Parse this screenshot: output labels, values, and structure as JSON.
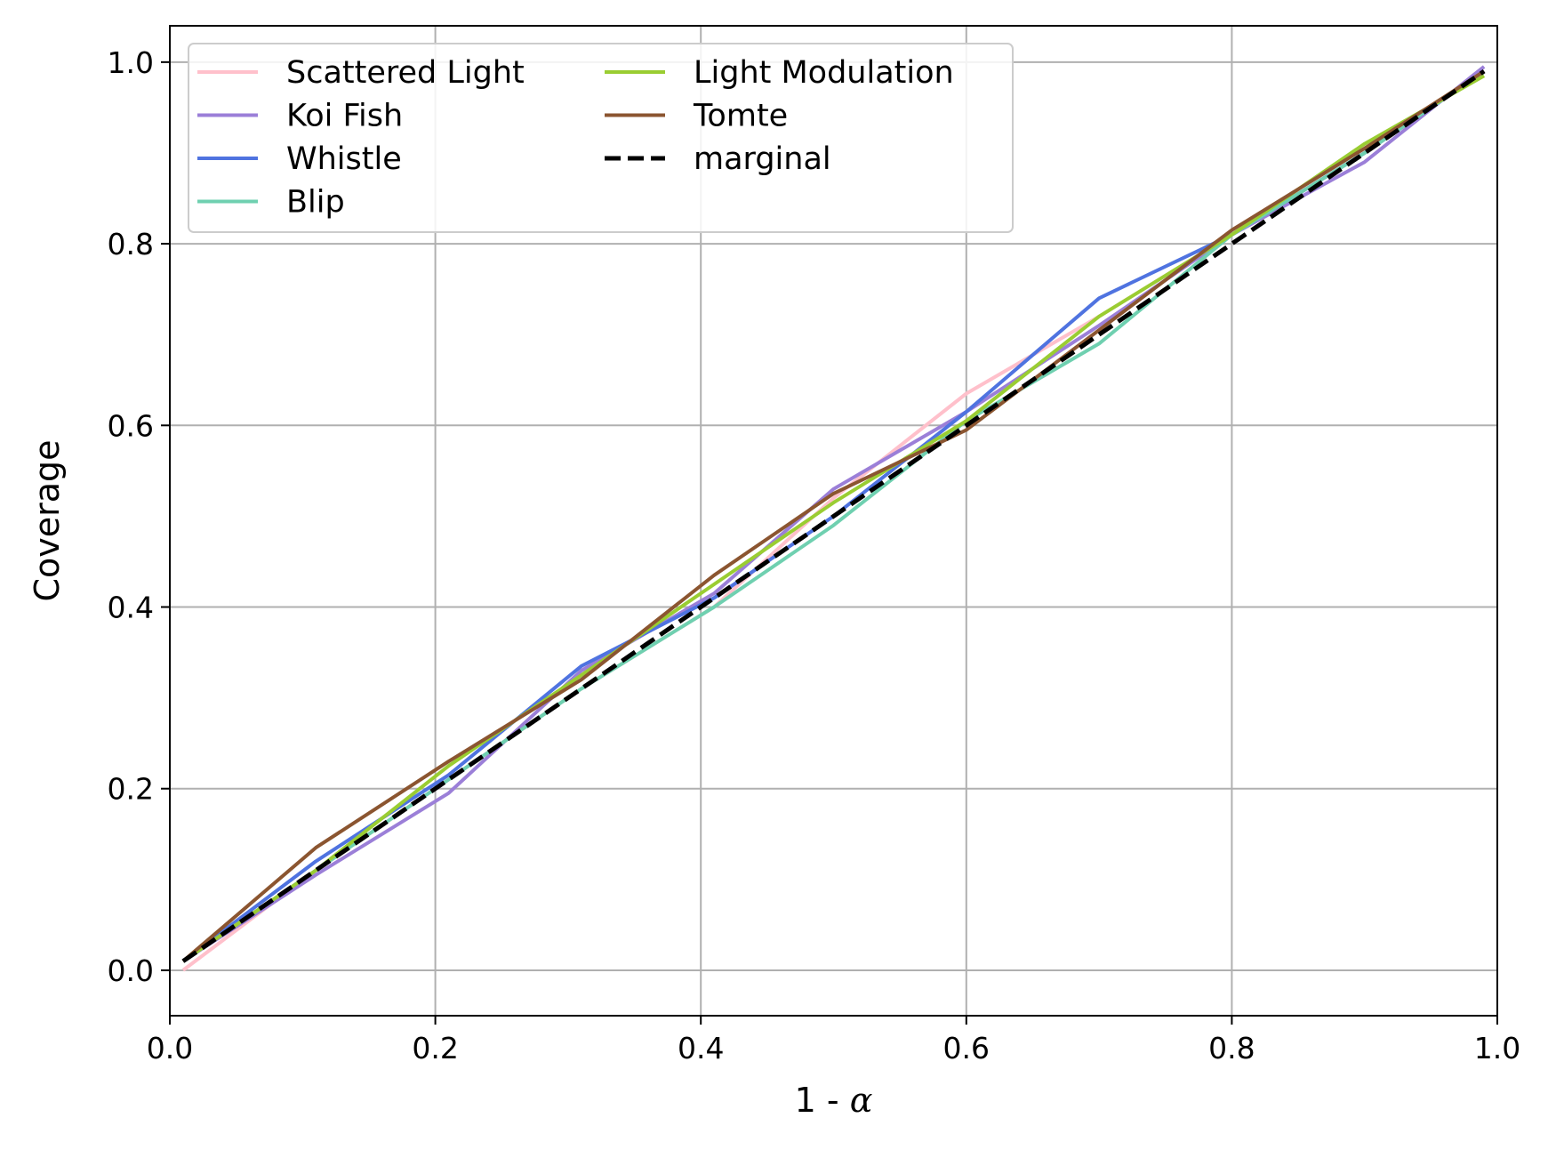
{
  "chart_data": {
    "type": "line",
    "xlabel_prefix": "1 - ",
    "xlabel_symbol": "α",
    "ylabel": "Coverage",
    "xlim": [
      0.0,
      1.0
    ],
    "ylim": [
      -0.05,
      1.04
    ],
    "xticks": [
      "0.0",
      "0.2",
      "0.4",
      "0.6",
      "0.8",
      "1.0"
    ],
    "yticks": [
      "0.0",
      "0.2",
      "0.4",
      "0.6",
      "0.8",
      "1.0"
    ],
    "xtick_values": [
      0.0,
      0.2,
      0.4,
      0.6,
      0.8,
      1.0
    ],
    "ytick_values": [
      0.0,
      0.2,
      0.4,
      0.6,
      0.8,
      1.0
    ],
    "grid": true,
    "legend_position": "top-left",
    "legend_columns": 2,
    "x": [
      0.01,
      0.11,
      0.21,
      0.31,
      0.41,
      0.5,
      0.6,
      0.7,
      0.8,
      0.9,
      0.99
    ],
    "series": [
      {
        "name": "Scattered Light",
        "color": "#ffc0cb",
        "dashed": false,
        "values": [
          0.0,
          0.11,
          0.21,
          0.31,
          0.4,
          0.52,
          0.635,
          0.72,
          0.81,
          0.9,
          0.99
        ]
      },
      {
        "name": "Koi Fish",
        "color": "#9b7fd8",
        "dashed": false,
        "values": [
          0.01,
          0.105,
          0.195,
          0.33,
          0.415,
          0.53,
          0.615,
          0.71,
          0.81,
          0.89,
          0.995
        ]
      },
      {
        "name": "Whistle",
        "color": "#4f73e0",
        "dashed": false,
        "values": [
          0.01,
          0.12,
          0.215,
          0.335,
          0.41,
          0.5,
          0.615,
          0.74,
          0.81,
          0.9,
          0.99
        ]
      },
      {
        "name": "Blip",
        "color": "#6fd0b0",
        "dashed": false,
        "values": [
          0.01,
          0.11,
          0.21,
          0.31,
          0.4,
          0.49,
          0.605,
          0.69,
          0.81,
          0.9,
          0.99
        ]
      },
      {
        "name": "Light Modulation",
        "color": "#9acd32",
        "dashed": false,
        "values": [
          0.01,
          0.11,
          0.225,
          0.325,
          0.425,
          0.515,
          0.605,
          0.72,
          0.81,
          0.91,
          0.985
        ]
      },
      {
        "name": "Tomte",
        "color": "#8b5530",
        "dashed": false,
        "values": [
          0.01,
          0.135,
          0.23,
          0.32,
          0.435,
          0.525,
          0.595,
          0.705,
          0.815,
          0.905,
          0.99
        ]
      },
      {
        "name": "marginal",
        "color": "#000000",
        "dashed": true,
        "values": [
          0.01,
          0.11,
          0.21,
          0.31,
          0.41,
          0.5,
          0.6,
          0.7,
          0.8,
          0.9,
          0.99
        ]
      }
    ]
  }
}
